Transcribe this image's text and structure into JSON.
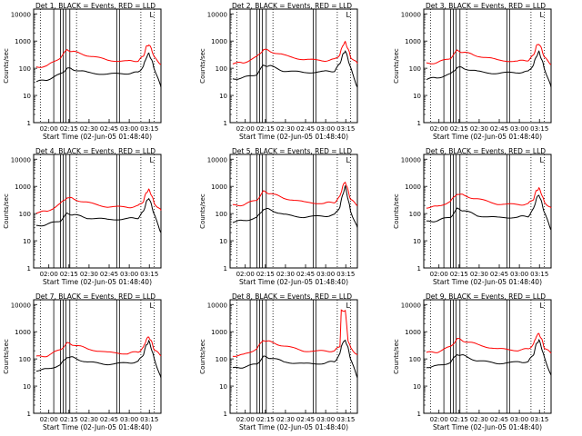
{
  "figure": {
    "xlabel": "Start Time (02-Jun-05 01:48:40)",
    "ylabel": "Counts/sec",
    "black_label": "BLACK = Events",
    "red_label": "RED = LLD",
    "legend_sep": ", ",
    "x_ticks": [
      "02:00",
      "02:15",
      "02:30",
      "02:45",
      "03:00",
      "03:15"
    ],
    "y_ticks": [
      "1",
      "10",
      "100",
      "1000",
      "10000"
    ],
    "corner_marker": "L"
  },
  "colors": {
    "events": "#000000",
    "lld": "#ff0000"
  },
  "chart_data": [
    {
      "type": "line",
      "title": "Det 1",
      "y_scale": "log",
      "ylim": [
        1,
        15000
      ],
      "x_unit": "minutes after 01:48:40",
      "xlim": [
        0,
        95
      ],
      "x": [
        2,
        10,
        20,
        25,
        30,
        40,
        55,
        70,
        78,
        82,
        84,
        86,
        88,
        90,
        95
      ],
      "series": [
        {
          "name": "Events",
          "color": "#000000",
          "values": [
            32,
            38,
            60,
            100,
            90,
            70,
            60,
            65,
            70,
            120,
            250,
            350,
            200,
            100,
            20
          ]
        },
        {
          "name": "LLD",
          "color": "#ff0000",
          "values": [
            110,
            120,
            250,
            480,
            400,
            300,
            200,
            180,
            190,
            280,
            600,
            750,
            500,
            250,
            140
          ]
        }
      ]
    },
    {
      "type": "line",
      "title": "Det 2",
      "y_scale": "log",
      "ylim": [
        1,
        15000
      ],
      "x_unit": "minutes after 01:48:40",
      "xlim": [
        0,
        95
      ],
      "x": [
        2,
        10,
        20,
        25,
        30,
        40,
        55,
        70,
        78,
        82,
        84,
        86,
        88,
        90,
        95
      ],
      "series": [
        {
          "name": "Events",
          "color": "#000000",
          "values": [
            40,
            45,
            60,
            130,
            120,
            80,
            70,
            75,
            80,
            150,
            300,
            450,
            220,
            100,
            20
          ]
        },
        {
          "name": "LLD",
          "color": "#ff0000",
          "values": [
            150,
            160,
            260,
            500,
            420,
            300,
            210,
            190,
            210,
            320,
            700,
            900,
            520,
            260,
            150
          ]
        }
      ]
    },
    {
      "type": "line",
      "title": "Det 3",
      "y_scale": "log",
      "ylim": [
        1,
        15000
      ],
      "x_unit": "minutes after 01:48:40",
      "xlim": [
        0,
        95
      ],
      "x": [
        2,
        10,
        20,
        25,
        30,
        40,
        55,
        70,
        78,
        82,
        84,
        86,
        88,
        90,
        95
      ],
      "series": [
        {
          "name": "Events",
          "color": "#000000",
          "values": [
            40,
            45,
            60,
            110,
            100,
            75,
            65,
            70,
            75,
            140,
            280,
            400,
            210,
            100,
            20
          ]
        },
        {
          "name": "LLD",
          "color": "#ff0000",
          "values": [
            150,
            160,
            240,
            450,
            380,
            290,
            200,
            180,
            200,
            300,
            650,
            800,
            500,
            250,
            140
          ]
        }
      ]
    },
    {
      "type": "line",
      "title": "Det 4",
      "y_scale": "log",
      "ylim": [
        1,
        15000
      ],
      "x_unit": "minutes after 01:48:40",
      "xlim": [
        0,
        95
      ],
      "x": [
        2,
        10,
        20,
        25,
        30,
        40,
        55,
        70,
        78,
        82,
        84,
        86,
        88,
        90,
        95
      ],
      "series": [
        {
          "name": "Events",
          "color": "#000000",
          "values": [
            35,
            40,
            55,
            100,
            90,
            70,
            60,
            65,
            70,
            120,
            260,
            380,
            200,
            90,
            20
          ]
        },
        {
          "name": "LLD",
          "color": "#ff0000",
          "values": [
            110,
            120,
            230,
            400,
            340,
            250,
            180,
            170,
            190,
            290,
            600,
            750,
            480,
            240,
            130
          ]
        }
      ]
    },
    {
      "type": "line",
      "title": "Det 5",
      "y_scale": "log",
      "ylim": [
        1,
        15000
      ],
      "x_unit": "minutes after 01:48:40",
      "xlim": [
        0,
        95
      ],
      "x": [
        2,
        10,
        20,
        25,
        30,
        40,
        55,
        70,
        78,
        82,
        84,
        86,
        88,
        90,
        95
      ],
      "series": [
        {
          "name": "Events",
          "color": "#000000",
          "values": [
            50,
            55,
            70,
            150,
            140,
            90,
            75,
            80,
            90,
            180,
            500,
            1000,
            350,
            120,
            30
          ]
        },
        {
          "name": "LLD",
          "color": "#ff0000",
          "values": [
            200,
            210,
            320,
            650,
            550,
            380,
            260,
            240,
            260,
            420,
            1000,
            1500,
            700,
            330,
            200
          ]
        }
      ]
    },
    {
      "type": "line",
      "title": "Det 6",
      "y_scale": "log",
      "ylim": [
        1,
        15000
      ],
      "x_unit": "minutes after 01:48:40",
      "xlim": [
        0,
        95
      ],
      "x": [
        2,
        10,
        20,
        25,
        30,
        40,
        55,
        70,
        78,
        82,
        84,
        86,
        88,
        90,
        95
      ],
      "series": [
        {
          "name": "Events",
          "color": "#000000",
          "values": [
            50,
            55,
            75,
            150,
            130,
            85,
            70,
            75,
            80,
            150,
            350,
            500,
            250,
            110,
            25
          ]
        },
        {
          "name": "LLD",
          "color": "#ff0000",
          "values": [
            170,
            180,
            280,
            550,
            460,
            340,
            230,
            210,
            230,
            350,
            700,
            850,
            520,
            260,
            160
          ]
        }
      ]
    },
    {
      "type": "line",
      "title": "Det 7",
      "y_scale": "log",
      "ylim": [
        1,
        15000
      ],
      "x_unit": "minutes after 01:48:40",
      "xlim": [
        0,
        95
      ],
      "x": [
        2,
        10,
        20,
        25,
        30,
        40,
        55,
        70,
        78,
        82,
        84,
        86,
        88,
        90,
        95
      ],
      "series": [
        {
          "name": "Events",
          "color": "#000000",
          "values": [
            38,
            42,
            60,
            120,
            110,
            75,
            65,
            70,
            80,
            150,
            320,
            450,
            230,
            100,
            20
          ]
        },
        {
          "name": "LLD",
          "color": "#ff0000",
          "values": [
            120,
            130,
            220,
            380,
            330,
            240,
            170,
            160,
            180,
            260,
            520,
            650,
            420,
            220,
            130
          ]
        }
      ]
    },
    {
      "type": "line",
      "title": "Det 8",
      "y_scale": "log",
      "ylim": [
        1,
        15000
      ],
      "x_unit": "minutes after 01:48:40",
      "xlim": [
        0,
        95
      ],
      "x": [
        2,
        10,
        20,
        25,
        30,
        40,
        55,
        70,
        78,
        82,
        83,
        86,
        88,
        90,
        95
      ],
      "series": [
        {
          "name": "Events",
          "color": "#000000",
          "values": [
            45,
            50,
            65,
            120,
            110,
            80,
            65,
            70,
            80,
            150,
            300,
            500,
            250,
            100,
            20
          ]
        },
        {
          "name": "LLD",
          "color": "#ff0000",
          "values": [
            130,
            140,
            240,
            500,
            420,
            300,
            200,
            190,
            200,
            300,
            6000,
            6000,
            500,
            250,
            140
          ]
        }
      ]
    },
    {
      "type": "line",
      "title": "Det 9",
      "y_scale": "log",
      "ylim": [
        1,
        15000
      ],
      "x_unit": "minutes after 01:48:40",
      "xlim": [
        0,
        95
      ],
      "x": [
        2,
        10,
        20,
        25,
        30,
        40,
        55,
        70,
        78,
        82,
        84,
        86,
        88,
        90,
        95
      ],
      "series": [
        {
          "name": "Events",
          "color": "#000000",
          "values": [
            50,
            55,
            75,
            150,
            130,
            85,
            70,
            75,
            80,
            150,
            350,
            500,
            250,
            110,
            25
          ]
        },
        {
          "name": "LLD",
          "color": "#ff0000",
          "values": [
            170,
            180,
            280,
            550,
            460,
            340,
            230,
            210,
            230,
            350,
            700,
            850,
            520,
            260,
            160
          ]
        }
      ]
    }
  ]
}
